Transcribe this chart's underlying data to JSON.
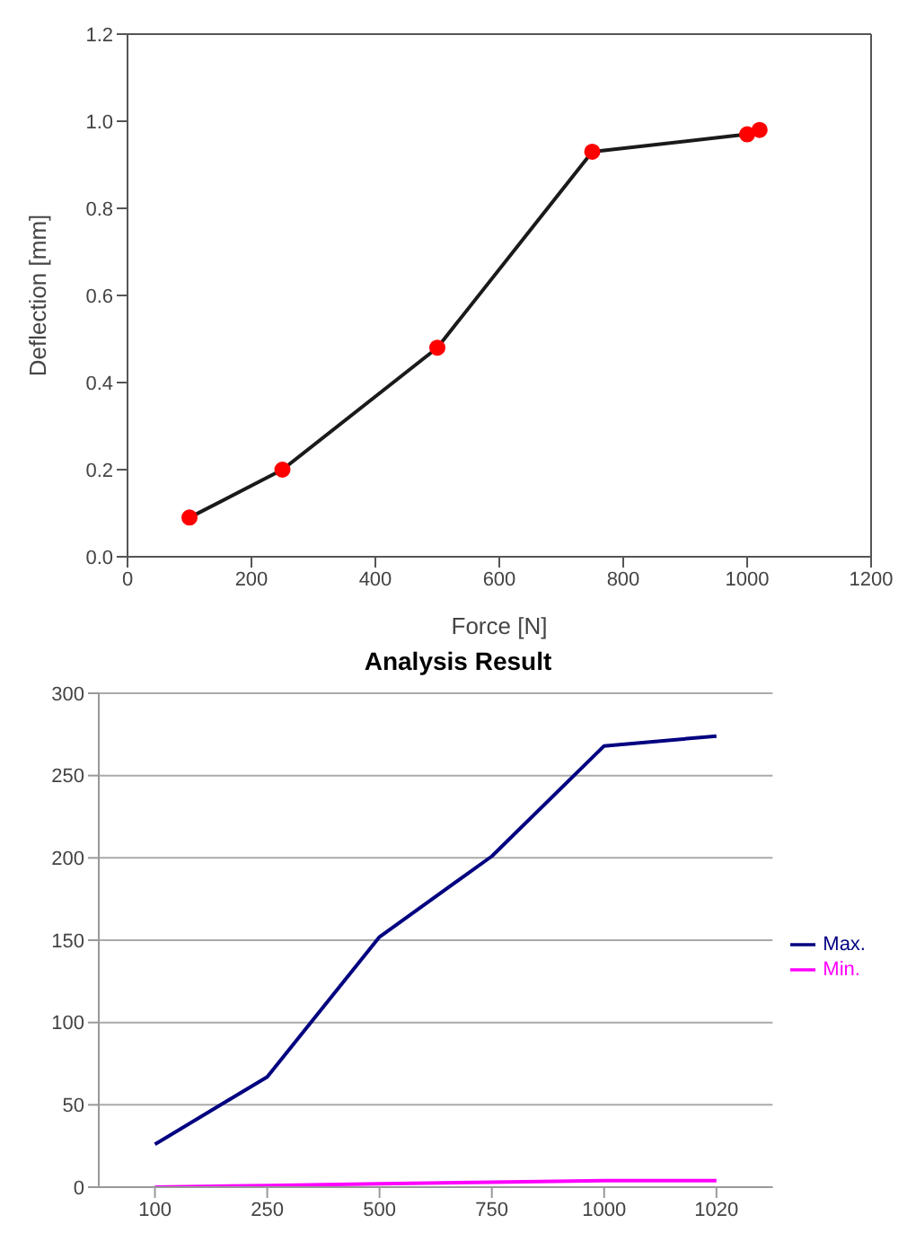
{
  "chart_data": [
    {
      "type": "line",
      "xlabel": "Force [N]",
      "ylabel": "Deflection [mm]",
      "x": [
        100,
        250,
        500,
        750,
        1000,
        1020
      ],
      "series": [
        {
          "color": "#1a1a1a",
          "colors": [
            "#ff0000",
            "#ff0000",
            "#ff0000",
            "#ff0000",
            "#ff0000",
            "#ff0000"
          ],
          "values": [
            0.09,
            0.2,
            0.48,
            0.93,
            0.97,
            0.98
          ]
        }
      ],
      "xlim": [
        0,
        1200
      ],
      "xticks": [
        0,
        200,
        400,
        600,
        800,
        1000,
        1200
      ],
      "ylim": [
        0,
        1.2
      ],
      "yticks": [
        {
          "value": 0,
          "label": "0.0"
        },
        0.2,
        0.4,
        0.6,
        0.8,
        {
          "value": 1,
          "label": "1.0"
        },
        1.2
      ],
      "grid": false,
      "legend": false,
      "marker": "circle",
      "line_style": "solid"
    },
    {
      "type": "line",
      "title": "Analysis Result",
      "categories": [
        "100",
        "250",
        "500",
        "750",
        "1000",
        "1020"
      ],
      "series": [
        {
          "name": "Max.",
          "color": "#000080",
          "values": [
            26,
            67,
            152,
            201,
            268,
            274
          ]
        },
        {
          "name": "Min.",
          "color": "#ff00ff",
          "values": [
            0,
            1,
            2,
            3,
            4,
            4
          ]
        }
      ],
      "ylim": [
        0,
        300
      ],
      "yticks": [
        0,
        50,
        100,
        150,
        200,
        250,
        300
      ],
      "grid": "y",
      "legend": "right",
      "marker": "none",
      "line_style": "solid"
    }
  ]
}
